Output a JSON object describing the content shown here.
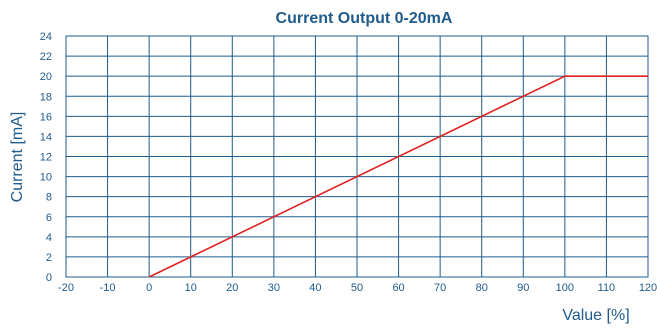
{
  "colors": {
    "grid": "#1f5b8c",
    "text": "#1f5b8c",
    "line": "#e02020",
    "background": "#ffffff"
  },
  "chart_data": {
    "type": "line",
    "title": "Current Output 0-20mA",
    "xlabel": "Value [%]",
    "ylabel": "Current [mA]",
    "xlim": [
      -20,
      120
    ],
    "ylim": [
      0,
      24
    ],
    "x_ticks": [
      "-20",
      "-10",
      "0",
      "10",
      "20",
      "30",
      "40",
      "50",
      "60",
      "70",
      "80",
      "90",
      "100",
      "110",
      "120"
    ],
    "y_ticks": [
      "0",
      "2",
      "4",
      "6",
      "8",
      "10",
      "12",
      "14",
      "16",
      "18",
      "20",
      "22",
      "24"
    ],
    "grid": true,
    "series": [
      {
        "x": [
          0,
          100,
          120
        ],
        "y": [
          0,
          20,
          20
        ]
      }
    ]
  }
}
